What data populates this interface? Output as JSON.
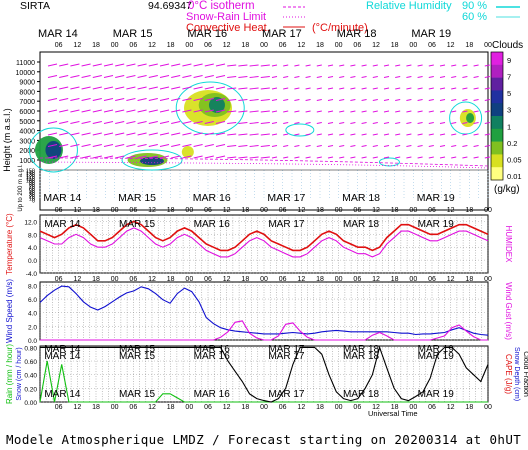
{
  "header": {
    "site": "SIRTA",
    "coord": "94.69347",
    "legend_isotherm": "0°C isotherm",
    "legend_snowrain": "Snow-Rain Limit",
    "legend_convective": "Convective Heat.",
    "legend_convective_unit": "(°C/minute)",
    "legend_humidity": "Relative Humidity",
    "legend_rh1": "90 %",
    "legend_rh2": "60 %",
    "cloud_label": "Clouds",
    "cloud_unit": "(g/kg)"
  },
  "footer": "Modele Atmospherique LMDZ / Forecast starting on 20200314 at 0hUT",
  "colors": {
    "red": "#e01010",
    "magenta": "#e010e0",
    "blue": "#1010d0",
    "cyan": "#10d8d8",
    "green": "#10c010",
    "orange": "#ff8000"
  },
  "chart_data": [
    {
      "type": "heatmap",
      "title": "",
      "ylabel": "Height (m a.s.l.)",
      "ylabel_lower": "Up to 200 m a.g.l.",
      "days": [
        "MAR 14",
        "MAR 15",
        "MAR 16",
        "MAR 17",
        "MAR 18",
        "MAR 19"
      ],
      "hour_ticks": [
        "06",
        "12",
        "18",
        "00"
      ],
      "y_ticks_upper": [
        1000,
        2000,
        3000,
        4000,
        5000,
        6000,
        7000,
        8000,
        9000,
        10000,
        11000
      ],
      "y_ticks_lower": [
        0,
        10,
        20,
        30,
        40,
        50,
        60,
        70,
        80,
        90,
        100,
        110,
        120,
        130,
        140,
        150
      ],
      "colorbar_ticks": [
        "9",
        "7",
        "5",
        "3",
        "1",
        "0.2",
        "0.05",
        "0.01"
      ],
      "colorbar_colors": [
        "#e020e0",
        "#b020c0",
        "#6020a0",
        "#2030a0",
        "#104080",
        "#108060",
        "#20a040",
        "#80c020",
        "#d8e020",
        "#ffff80"
      ]
    },
    {
      "type": "line",
      "ylabel": "Temperature (°C)",
      "y2label": "HUMIDEX",
      "yticks": [
        -4.0,
        0.0,
        4.0,
        8.0,
        12.0
      ],
      "ylim": [
        -4,
        14
      ],
      "series": [
        {
          "color": "#e01010",
          "values": [
            9,
            8,
            7,
            8,
            10,
            11,
            10,
            8,
            6,
            6,
            7,
            9,
            11,
            12,
            11,
            9,
            7,
            6,
            7,
            9,
            10,
            9,
            7,
            5,
            4,
            3,
            3,
            4,
            6,
            8,
            9,
            8,
            6,
            5,
            4,
            3,
            3,
            4,
            6,
            8,
            9,
            8,
            6,
            5,
            4,
            4,
            3,
            4,
            7,
            9,
            11,
            11,
            10,
            9,
            8,
            8,
            9,
            10,
            11,
            11,
            10,
            9,
            8
          ]
        },
        {
          "color": "#e010e0",
          "values": [
            7,
            6,
            5,
            5,
            7,
            8,
            7,
            5,
            4,
            4,
            5,
            7,
            9,
            10,
            9,
            7,
            5,
            4,
            5,
            7,
            8,
            7,
            5,
            3,
            2,
            1,
            1,
            2,
            4,
            6,
            7,
            6,
            4,
            3,
            2,
            1,
            1,
            2,
            4,
            6,
            7,
            6,
            4,
            3,
            2,
            2,
            1,
            2,
            5,
            7,
            9,
            9,
            8,
            7,
            6,
            6,
            7,
            8,
            9,
            9,
            8,
            7,
            6
          ]
        }
      ]
    },
    {
      "type": "line",
      "ylabel": "Wind Speed (m/s)",
      "y2label": "Wind Gust (m/s)",
      "yticks": [
        0.0,
        2.0,
        4.0,
        6.0,
        8.0
      ],
      "ylim": [
        0,
        8.5
      ],
      "series": [
        {
          "color": "#1010d0",
          "values": [
            5.5,
            6.5,
            7.3,
            7.9,
            7.8,
            6.8,
            5.6,
            4.8,
            4.4,
            4.9,
            5.6,
            6.3,
            6.9,
            7.2,
            7.8,
            7.5,
            6.8,
            5.9,
            5.4,
            6.8,
            7.6,
            7.1,
            5.6,
            3.3,
            2.4,
            1.8,
            1.5,
            1.3,
            1.2,
            1.1,
            1.0,
            0.9,
            0.9,
            0.9,
            1.0,
            1.1,
            1.0,
            0.9,
            1.0,
            1.2,
            1.3,
            1.4,
            1.3,
            1.2,
            1.2,
            1.2,
            1.2,
            1.2,
            1.2,
            1.1,
            1.0,
            1.0,
            0.8,
            0.9,
            0.9,
            1.0,
            1.1,
            1.5,
            1.8,
            1.4,
            1.0,
            0.8,
            0.7
          ]
        },
        {
          "color": "#e010e0",
          "values": [
            0,
            0,
            0,
            0,
            0,
            0,
            0,
            0,
            0,
            0,
            0,
            0,
            0,
            0,
            0,
            0,
            0,
            0,
            0,
            0,
            0,
            0,
            0,
            0,
            0,
            0.4,
            1.2,
            2.6,
            2.8,
            1.0,
            0.3,
            0,
            0,
            0.6,
            2.3,
            2.5,
            1.3,
            0.4,
            0,
            0,
            0,
            0,
            0,
            0,
            0,
            0,
            0.7,
            1.1,
            0.6,
            0,
            0,
            0,
            0,
            0,
            0,
            0.3,
            0.6,
            1.8,
            2.2,
            1.3,
            0.5,
            0,
            0
          ]
        }
      ]
    },
    {
      "type": "line",
      "ylabel": "Rain (mm / hour)",
      "ylabel2": "Snow (cm / hour)",
      "y2label": "CAPE (J/g)",
      "y2label2": "Snow Depth (cm)",
      "y2label3": "Cloud Fraction",
      "yticks": [
        0.0,
        0.2,
        0.4,
        0.6,
        0.8
      ],
      "ylim": [
        0,
        0.82
      ],
      "series": [
        {
          "color": "#10c010",
          "values": [
            0,
            0.6,
            0,
            0.55,
            0,
            0,
            0,
            0,
            0,
            0,
            0,
            0,
            0,
            0,
            0,
            0,
            0,
            0.12,
            0.12,
            0.06,
            0,
            0,
            0,
            0,
            0,
            0,
            0,
            0,
            0,
            0,
            0,
            0,
            0,
            0,
            0,
            0,
            0,
            0,
            0,
            0,
            0,
            0,
            0,
            0,
            0,
            0,
            0,
            0,
            0,
            0,
            0,
            0,
            0,
            0,
            0,
            0,
            0,
            0,
            0,
            0,
            0,
            0,
            0
          ]
        },
        {
          "color": "#000000",
          "values": [
            0.8,
            0.8,
            0.8,
            0.8,
            0.8,
            0.8,
            0.8,
            0.8,
            0.8,
            0.8,
            0.8,
            0.8,
            0.8,
            0.8,
            0.8,
            0.8,
            0.8,
            0.8,
            0.8,
            0.8,
            0.8,
            0.8,
            0.8,
            0.8,
            0.8,
            0.8,
            0.6,
            0.45,
            0.3,
            0.12,
            0.05,
            0.02,
            0.0,
            0.05,
            0.2,
            0.55,
            0.8,
            0.8,
            0.8,
            0.7,
            0.4,
            0.15,
            0.05,
            0.02,
            0.05,
            0.2,
            0.4,
            0.8,
            0.5,
            0.2,
            0.05,
            0.02,
            0.08,
            0.15,
            0.35,
            0.7,
            0.8,
            0.8,
            0.7,
            0.5,
            0.4,
            0.3,
            0.55
          ]
        }
      ]
    }
  ]
}
